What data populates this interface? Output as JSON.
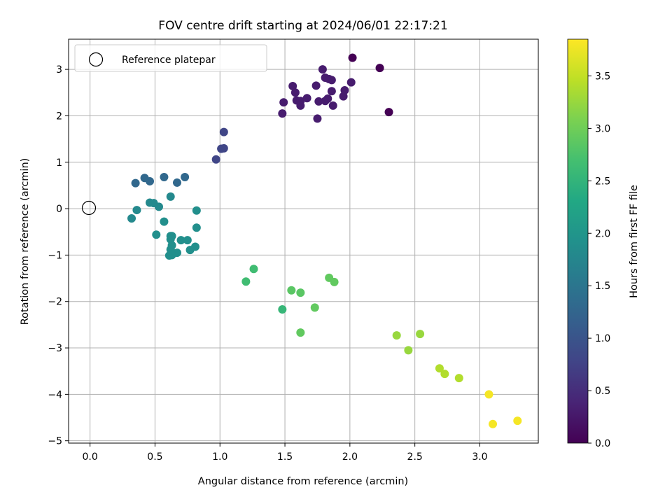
{
  "chart_data": {
    "type": "scatter",
    "title": "FOV centre drift starting at 2024/06/01 22:17:21",
    "xlabel": "Angular distance from reference (arcmin)",
    "ylabel": "Rotation from reference (arcmin)",
    "xlim": [
      -0.165,
      3.45
    ],
    "ylim": [
      -5.05,
      3.65
    ],
    "x_ticks": [
      0.0,
      0.5,
      1.0,
      1.5,
      2.0,
      2.5,
      3.0
    ],
    "x_tick_labels": [
      "0.0",
      "0.5",
      "1.0",
      "1.5",
      "2.0",
      "2.5",
      "3.0"
    ],
    "y_ticks": [
      -5,
      -4,
      -3,
      -2,
      -1,
      0,
      1,
      2,
      3
    ],
    "y_tick_labels": [
      "−5",
      "−4",
      "−3",
      "−2",
      "−1",
      "0",
      "1",
      "2",
      "3"
    ],
    "grid": true,
    "legend": {
      "placement": "top-left",
      "entries": [
        "Reference platepar"
      ]
    },
    "reference_point": {
      "x": 0.0,
      "y": 0.0
    },
    "colorbar": {
      "label": "Hours from first FF file",
      "range": [
        0.0,
        3.85
      ],
      "ticks": [
        0.0,
        0.5,
        1.0,
        1.5,
        2.0,
        2.5,
        3.0,
        3.5
      ],
      "tick_labels": [
        "0.0",
        "0.5",
        "1.0",
        "1.5",
        "2.0",
        "2.5",
        "3.0",
        "3.5"
      ],
      "colormap": "viridis"
    },
    "points": [
      {
        "x": 2.02,
        "y": 3.25,
        "t": 0.0
      },
      {
        "x": 2.23,
        "y": 3.03,
        "t": 0.0
      },
      {
        "x": 2.3,
        "y": 2.08,
        "t": 0.0
      },
      {
        "x": 1.79,
        "y": 3.0,
        "t": 0.3
      },
      {
        "x": 1.81,
        "y": 2.82,
        "t": 0.3
      },
      {
        "x": 1.84,
        "y": 2.79,
        "t": 0.3
      },
      {
        "x": 1.86,
        "y": 2.77,
        "t": 0.3
      },
      {
        "x": 1.86,
        "y": 2.53,
        "t": 0.3
      },
      {
        "x": 1.74,
        "y": 2.65,
        "t": 0.3
      },
      {
        "x": 1.56,
        "y": 2.64,
        "t": 0.3
      },
      {
        "x": 1.58,
        "y": 2.5,
        "t": 0.3
      },
      {
        "x": 1.59,
        "y": 2.33,
        "t": 0.3
      },
      {
        "x": 1.62,
        "y": 2.32,
        "t": 0.3
      },
      {
        "x": 1.62,
        "y": 2.22,
        "t": 0.3
      },
      {
        "x": 1.67,
        "y": 2.38,
        "t": 0.3
      },
      {
        "x": 1.76,
        "y": 2.31,
        "t": 0.3
      },
      {
        "x": 1.81,
        "y": 2.32,
        "t": 0.3
      },
      {
        "x": 1.83,
        "y": 2.37,
        "t": 0.3
      },
      {
        "x": 1.87,
        "y": 2.22,
        "t": 0.3
      },
      {
        "x": 1.95,
        "y": 2.42,
        "t": 0.3
      },
      {
        "x": 1.96,
        "y": 2.55,
        "t": 0.3
      },
      {
        "x": 2.01,
        "y": 2.72,
        "t": 0.3
      },
      {
        "x": 1.49,
        "y": 2.29,
        "t": 0.3
      },
      {
        "x": 1.48,
        "y": 2.05,
        "t": 0.3
      },
      {
        "x": 1.75,
        "y": 1.94,
        "t": 0.3
      },
      {
        "x": 1.03,
        "y": 1.65,
        "t": 0.8
      },
      {
        "x": 1.01,
        "y": 1.29,
        "t": 0.8
      },
      {
        "x": 1.03,
        "y": 1.3,
        "t": 0.8
      },
      {
        "x": 0.97,
        "y": 1.06,
        "t": 0.8
      },
      {
        "x": 0.73,
        "y": 0.68,
        "t": 1.3
      },
      {
        "x": 0.57,
        "y": 0.68,
        "t": 1.3
      },
      {
        "x": 0.67,
        "y": 0.56,
        "t": 1.3
      },
      {
        "x": 0.42,
        "y": 0.66,
        "t": 1.3
      },
      {
        "x": 0.46,
        "y": 0.59,
        "t": 1.3
      },
      {
        "x": 0.35,
        "y": 0.55,
        "t": 1.3
      },
      {
        "x": 0.62,
        "y": 0.26,
        "t": 1.8
      },
      {
        "x": 0.46,
        "y": 0.13,
        "t": 1.8
      },
      {
        "x": 0.49,
        "y": 0.12,
        "t": 1.8
      },
      {
        "x": 0.53,
        "y": 0.04,
        "t": 1.8
      },
      {
        "x": 0.36,
        "y": -0.03,
        "t": 1.8
      },
      {
        "x": 0.32,
        "y": -0.21,
        "t": 1.8
      },
      {
        "x": 0.57,
        "y": -0.28,
        "t": 1.9
      },
      {
        "x": 0.82,
        "y": -0.04,
        "t": 1.9
      },
      {
        "x": 0.82,
        "y": -0.41,
        "t": 1.9
      },
      {
        "x": 0.51,
        "y": -0.56,
        "t": 1.9
      },
      {
        "x": 0.62,
        "y": -0.59,
        "t": 1.9
      },
      {
        "x": 0.63,
        "y": -0.59,
        "t": 1.9
      },
      {
        "x": 0.62,
        "y": -0.66,
        "t": 1.9
      },
      {
        "x": 0.7,
        "y": -0.68,
        "t": 1.9
      },
      {
        "x": 0.75,
        "y": -0.68,
        "t": 1.9
      },
      {
        "x": 0.63,
        "y": -0.79,
        "t": 1.9
      },
      {
        "x": 0.62,
        "y": -0.88,
        "t": 1.9
      },
      {
        "x": 0.81,
        "y": -0.82,
        "t": 1.9
      },
      {
        "x": 0.77,
        "y": -0.89,
        "t": 1.9
      },
      {
        "x": 0.67,
        "y": -0.95,
        "t": 1.9
      },
      {
        "x": 0.61,
        "y": -1.01,
        "t": 1.9
      },
      {
        "x": 0.63,
        "y": -1.0,
        "t": 1.9
      },
      {
        "x": 1.26,
        "y": -1.3,
        "t": 2.65
      },
      {
        "x": 1.2,
        "y": -1.57,
        "t": 2.65
      },
      {
        "x": 1.48,
        "y": -2.17,
        "t": 2.55
      },
      {
        "x": 1.55,
        "y": -1.76,
        "t": 2.85
      },
      {
        "x": 1.62,
        "y": -1.81,
        "t": 2.85
      },
      {
        "x": 1.62,
        "y": -2.67,
        "t": 2.9
      },
      {
        "x": 1.73,
        "y": -2.13,
        "t": 2.9
      },
      {
        "x": 1.84,
        "y": -1.49,
        "t": 2.9
      },
      {
        "x": 1.88,
        "y": -1.58,
        "t": 2.9
      },
      {
        "x": 2.36,
        "y": -2.73,
        "t": 3.25
      },
      {
        "x": 2.54,
        "y": -2.7,
        "t": 3.25
      },
      {
        "x": 2.45,
        "y": -3.05,
        "t": 3.25
      },
      {
        "x": 2.69,
        "y": -3.44,
        "t": 3.4
      },
      {
        "x": 2.73,
        "y": -3.56,
        "t": 3.4
      },
      {
        "x": 2.84,
        "y": -3.65,
        "t": 3.4
      },
      {
        "x": 3.07,
        "y": -4.0,
        "t": 3.8
      },
      {
        "x": 3.1,
        "y": -4.64,
        "t": 3.8
      },
      {
        "x": 3.29,
        "y": -4.57,
        "t": 3.8
      }
    ]
  }
}
